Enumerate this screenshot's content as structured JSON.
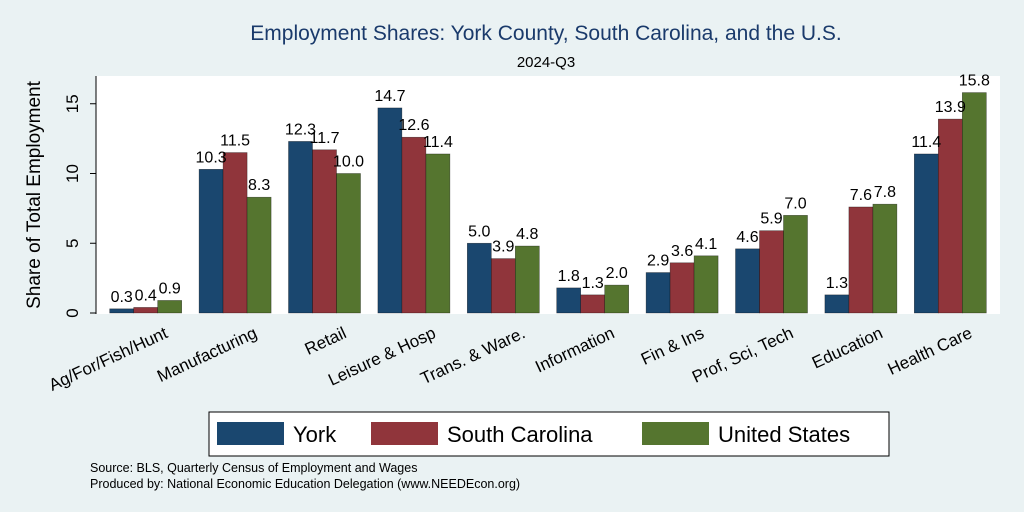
{
  "chart_data": {
    "type": "bar",
    "title": "Employment Shares: York County, South Carolina, and the U.S.",
    "subtitle": "2024-Q3",
    "ylabel": "Share of Total Employment",
    "xlabel": "",
    "ylim": [
      0,
      17
    ],
    "yticks": [
      0,
      5,
      10,
      15
    ],
    "grid": false,
    "legend_position": "bottom",
    "categories": [
      "Ag/For/Fish/Hunt",
      "Manufacturing",
      "Retail",
      "Leisure & Hosp",
      "Trans. & Ware.",
      "Information",
      "Fin & Ins",
      "Prof, Sci, Tech",
      "Education",
      "Health Care"
    ],
    "series": [
      {
        "name": "York",
        "color": "#1a476f",
        "values": [
          0.3,
          10.3,
          12.3,
          14.7,
          5.0,
          1.8,
          2.9,
          4.6,
          1.3,
          11.4
        ]
      },
      {
        "name": "South Carolina",
        "color": "#90353b",
        "values": [
          0.4,
          11.5,
          11.7,
          12.6,
          3.9,
          1.3,
          3.6,
          5.9,
          7.6,
          13.9
        ]
      },
      {
        "name": "United States",
        "color": "#55752f",
        "values": [
          0.9,
          8.3,
          10.0,
          11.4,
          4.8,
          2.0,
          4.1,
          7.0,
          7.8,
          15.8
        ]
      }
    ],
    "notes": [
      "Source: BLS, Quarterly Census of Employment and Wages",
      "Produced by: National Economic Education Delegation (www.NEEDEcon.org)"
    ]
  }
}
